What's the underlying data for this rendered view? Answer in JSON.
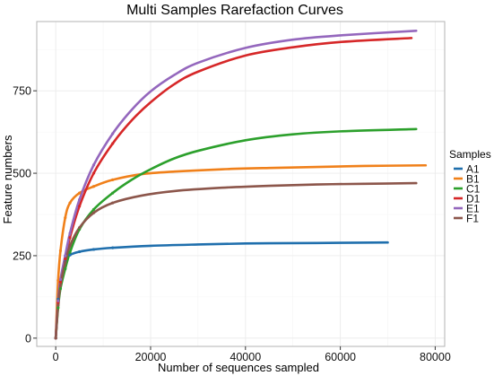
{
  "chart_data": {
    "type": "line",
    "title": "Multi Samples Rarefaction Curves",
    "xlabel": "Number of sequences sampled",
    "ylabel": "Feature numbers",
    "xlim": [
      -4000,
      82000
    ],
    "ylim": [
      -25,
      960
    ],
    "x_ticks": [
      0,
      20000,
      40000,
      60000,
      80000
    ],
    "x_tick_labels": [
      "0",
      "20000",
      "40000",
      "60000",
      "80000"
    ],
    "y_ticks": [
      0,
      250,
      500,
      750
    ],
    "y_tick_labels": [
      "0",
      "250",
      "500",
      "750"
    ],
    "grid": true,
    "legend": {
      "title": "Samples",
      "position": "right"
    },
    "series": [
      {
        "name": "A1",
        "color": "#1f6fad",
        "x": [
          0,
          500,
          1000,
          2000,
          3000,
          5000,
          8000,
          12000,
          20000,
          30000,
          40000,
          50000,
          60000,
          70000
        ],
        "y": [
          0,
          118,
          172,
          232,
          252,
          262,
          269,
          274,
          280,
          284,
          287,
          288,
          289,
          290
        ]
      },
      {
        "name": "B1",
        "color": "#f0801a",
        "x": [
          0,
          500,
          1000,
          2000,
          3000,
          5000,
          8000,
          12000,
          18000,
          25000,
          35000,
          45000,
          55000,
          65000,
          78000
        ],
        "y": [
          0,
          175,
          265,
          365,
          410,
          440,
          460,
          480,
          497,
          505,
          512,
          516,
          519,
          522,
          524
        ]
      },
      {
        "name": "C1",
        "color": "#2ca02c",
        "x": [
          0,
          500,
          1000,
          2000,
          3000,
          5000,
          8000,
          12000,
          16000,
          20000,
          25000,
          30000,
          40000,
          50000,
          60000,
          76000
        ],
        "y": [
          0,
          92,
          150,
          210,
          260,
          330,
          390,
          440,
          480,
          512,
          545,
          568,
          600,
          618,
          627,
          634
        ]
      },
      {
        "name": "D1",
        "color": "#d62728",
        "x": [
          0,
          500,
          1000,
          2000,
          3000,
          5000,
          8000,
          12000,
          16000,
          20000,
          25000,
          30000,
          40000,
          50000,
          60000,
          75000
        ],
        "y": [
          0,
          108,
          170,
          240,
          305,
          400,
          500,
          590,
          660,
          715,
          770,
          808,
          857,
          882,
          898,
          910
        ]
      },
      {
        "name": "E1",
        "color": "#9467bd",
        "x": [
          0,
          500,
          1000,
          2000,
          3000,
          5000,
          8000,
          12000,
          16000,
          20000,
          25000,
          30000,
          40000,
          50000,
          60000,
          76000
        ],
        "y": [
          0,
          113,
          178,
          250,
          318,
          420,
          525,
          620,
          692,
          748,
          798,
          835,
          880,
          905,
          918,
          932
        ]
      },
      {
        "name": "F1",
        "color": "#8c564b",
        "x": [
          0,
          500,
          1000,
          2000,
          3000,
          5000,
          8000,
          12000,
          18000,
          25000,
          35000,
          45000,
          55000,
          65000,
          76000
        ],
        "y": [
          0,
          100,
          160,
          230,
          280,
          335,
          380,
          410,
          432,
          446,
          456,
          462,
          466,
          468,
          470
        ]
      }
    ]
  }
}
